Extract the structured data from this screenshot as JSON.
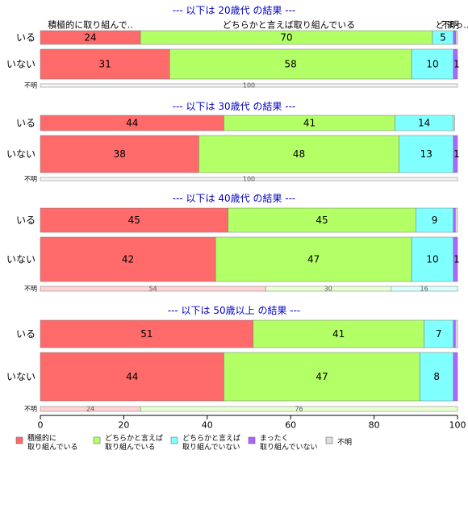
{
  "chart_data": {
    "type": "bar",
    "orientation": "horizontal-stacked-percent",
    "xlim": [
      0,
      100
    ],
    "x_ticks": [
      "0",
      "20",
      "40",
      "60",
      "80",
      "100"
    ],
    "colors": [
      "#ff6b6b",
      "#b3ff66",
      "#80ffff",
      "#aa66ff",
      "#dddddd"
    ],
    "legend": {
      "position": "bottom",
      "entries": [
        [
          "積極的に",
          "取り組んでいる"
        ],
        [
          "どちらかと言えば",
          "取り組んでいる"
        ],
        [
          "どちらかと言えば",
          "取り組んでいない"
        ],
        [
          "まったく",
          "取り組んでいない"
        ],
        [
          "不明"
        ]
      ]
    },
    "panels": [
      {
        "title": "--- 以下は 20歳代 の結果 ---",
        "header_labels": [
          "積極的に取り組んで..",
          "どちらかと言えば取り組んでいる",
          "ど",
          "不明",
          "まっ.."
        ],
        "rows": [
          {
            "label": "いる",
            "values": [
              24,
              70,
              5,
              0.6,
              0.4
            ],
            "value_labels": [
              "24",
              "70",
              "5",
              "",
              ""
            ]
          },
          {
            "label": "いない",
            "values": [
              31,
              58,
              10,
              1,
              0
            ],
            "value_labels": [
              "31",
              "58",
              "10",
              "1",
              ""
            ]
          }
        ],
        "unknown": {
          "label": "不明",
          "values": [
            0,
            0,
            0,
            0,
            100
          ],
          "value_labels": [
            "",
            "",
            "",
            "",
            "100"
          ]
        }
      },
      {
        "title": "--- 以下は 30歳代 の結果 ---",
        "rows": [
          {
            "label": "いる",
            "values": [
              44,
              41,
              14,
              0,
              0.3
            ],
            "value_labels": [
              "44",
              "41",
              "14",
              "",
              ""
            ]
          },
          {
            "label": "いない",
            "values": [
              38,
              48,
              13,
              1,
              0
            ],
            "value_labels": [
              "38",
              "48",
              "13",
              "1",
              ""
            ]
          }
        ],
        "unknown": {
          "label": "不明",
          "values": [
            0,
            0,
            0,
            0,
            100
          ],
          "value_labels": [
            "",
            "",
            "",
            "",
            "100"
          ]
        }
      },
      {
        "title": "--- 以下は 40歳代 の結果 ---",
        "rows": [
          {
            "label": "いる",
            "values": [
              45,
              45,
              9,
              0.5,
              0.5
            ],
            "value_labels": [
              "45",
              "45",
              "9",
              "",
              ""
            ]
          },
          {
            "label": "いない",
            "values": [
              42,
              47,
              10,
              1,
              0
            ],
            "value_labels": [
              "42",
              "47",
              "10",
              "1",
              ""
            ]
          }
        ],
        "unknown": {
          "label": "不明",
          "values": [
            54,
            30,
            16,
            0,
            0
          ],
          "value_labels": [
            "54",
            "30",
            "16",
            "",
            ""
          ]
        }
      },
      {
        "title": "--- 以下は 50歳以上 の結果 ---",
        "rows": [
          {
            "label": "いる",
            "values": [
              51,
              41,
              7,
              0.5,
              0.5
            ],
            "value_labels": [
              "51",
              "41",
              "7",
              "",
              ""
            ]
          },
          {
            "label": "いない",
            "values": [
              44,
              47,
              8,
              1,
              0
            ],
            "value_labels": [
              "44",
              "47",
              "8",
              "",
              ""
            ]
          }
        ],
        "unknown": {
          "label": "不明",
          "values": [
            24,
            76,
            0,
            0,
            0
          ],
          "value_labels": [
            "24",
            "76",
            "",
            "",
            ""
          ]
        }
      }
    ]
  }
}
